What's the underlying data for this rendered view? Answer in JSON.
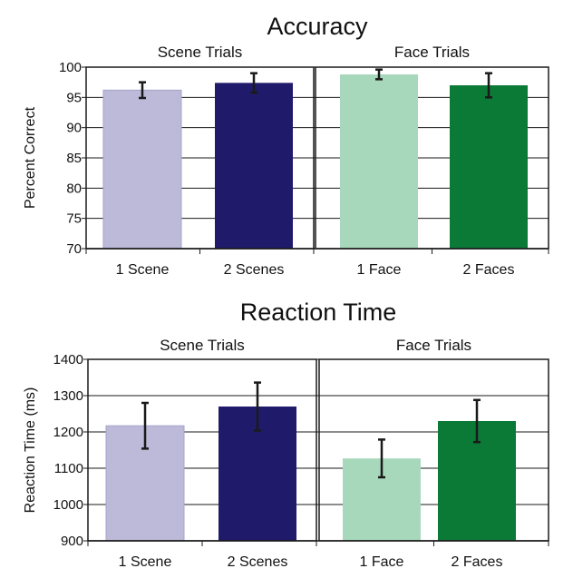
{
  "chart_data": [
    {
      "type": "bar",
      "title": "Accuracy",
      "ylabel": "Percent Correct",
      "ylim": [
        70,
        100
      ],
      "yticks": [
        70,
        75,
        80,
        85,
        90,
        95,
        100
      ],
      "grid": true,
      "panels": [
        {
          "title": "Scene Trials",
          "categories": [
            "1 Scene",
            "2 Scenes"
          ],
          "values": [
            96.2,
            97.4
          ],
          "errors": [
            1.3,
            1.6
          ],
          "colors": [
            "#bcb9d9",
            "#201a6a"
          ]
        },
        {
          "title": "Face Trials",
          "categories": [
            "1 Face",
            "2 Faces"
          ],
          "values": [
            98.8,
            97.0
          ],
          "errors": [
            0.8,
            2.0
          ],
          "colors": [
            "#a8d8bc",
            "#0c7a37"
          ]
        }
      ]
    },
    {
      "type": "bar",
      "title": "Reaction Time",
      "ylabel": "Reaction Time (ms)",
      "ylim": [
        900,
        1400
      ],
      "yticks": [
        900,
        1000,
        1100,
        1200,
        1300,
        1400
      ],
      "grid": true,
      "panels": [
        {
          "title": "Scene Trials",
          "categories": [
            "1 Scene",
            "2 Scenes"
          ],
          "values": [
            1217,
            1270
          ],
          "errors": [
            63,
            66
          ],
          "colors": [
            "#bcb9d9",
            "#201a6a"
          ]
        },
        {
          "title": "Face Trials",
          "categories": [
            "1 Face",
            "2 Faces"
          ],
          "values": [
            1127,
            1230
          ],
          "errors": [
            52,
            58
          ],
          "colors": [
            "#a8d8bc",
            "#0c7a37"
          ]
        }
      ]
    }
  ]
}
